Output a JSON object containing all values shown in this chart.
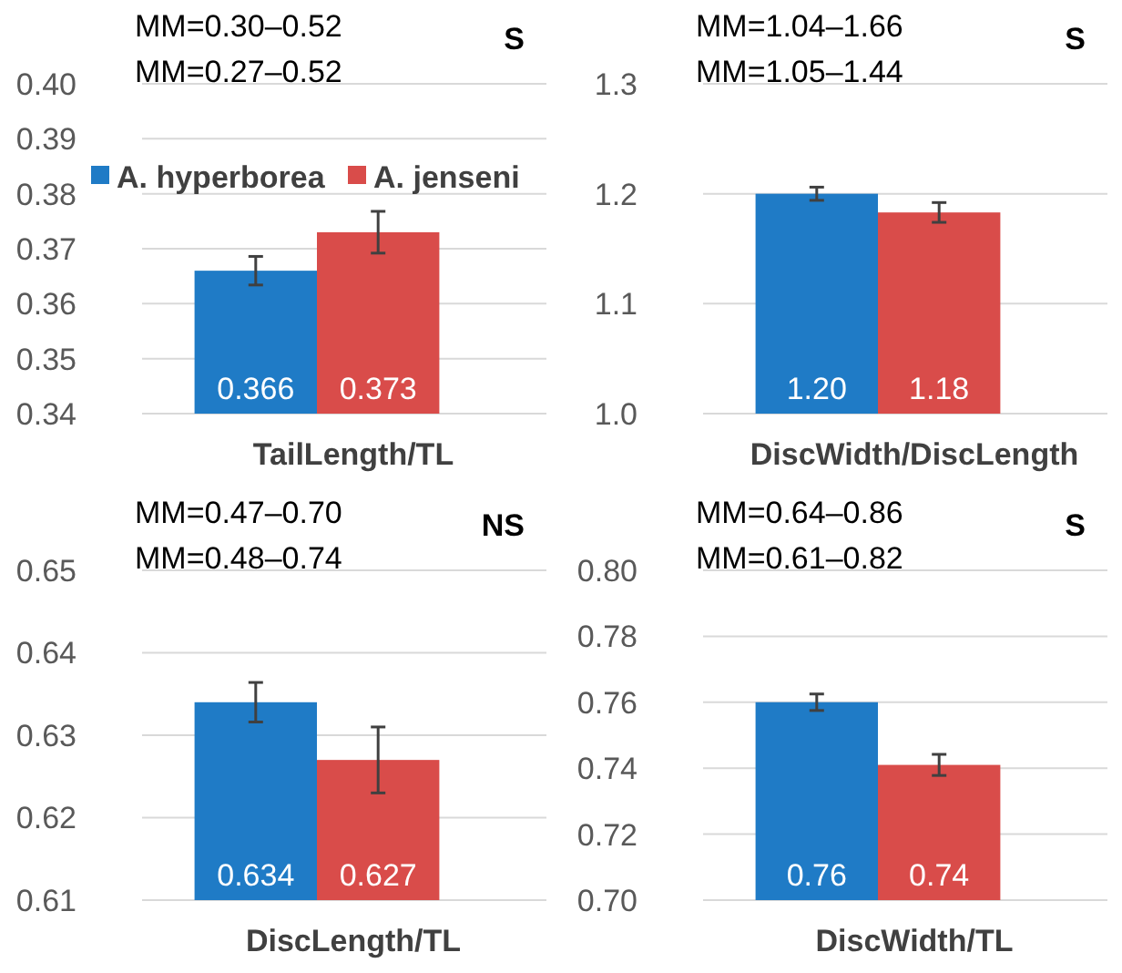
{
  "chart_data": [
    {
      "type": "bar",
      "xlabel": "TailLength/TL",
      "categories": [
        null
      ],
      "ylim": [
        0.34,
        0.4
      ],
      "yticks": [
        {
          "value": 0.34,
          "label": "0.34"
        },
        {
          "value": 0.35,
          "label": "0.35"
        },
        {
          "value": 0.36,
          "label": "0.36"
        },
        {
          "value": 0.37,
          "label": "0.37"
        },
        {
          "value": 0.38,
          "label": "0.38"
        },
        {
          "value": 0.39,
          "label": "0.39"
        },
        {
          "value": 0.4,
          "label": "0.40"
        }
      ],
      "grid": "y",
      "tick_labels": "y",
      "legend": "top left",
      "annotations": [
        "MM=0.30–0.52",
        "MM=0.27–0.52",
        "S"
      ],
      "series": [
        {
          "name": "A. hyperborea",
          "color": "#1f7bc6",
          "values": [
            0.366
          ],
          "errors": [
            0.0026
          ],
          "value_labels": [
            "0.366"
          ]
        },
        {
          "name": "A. jenseni",
          "color": "#d94c4a",
          "values": [
            0.373
          ],
          "errors": [
            0.0038
          ],
          "value_labels": [
            "0.373"
          ]
        }
      ]
    },
    {
      "type": "bar",
      "xlabel": "DiscWidth/DiscLength",
      "categories": [
        null
      ],
      "ylim": [
        1.0,
        1.3
      ],
      "yticks": [
        {
          "value": 1.0,
          "label": "1.0"
        },
        {
          "value": 1.1,
          "label": "1.1"
        },
        {
          "value": 1.2,
          "label": "1.2"
        },
        {
          "value": 1.3,
          "label": "1.3"
        }
      ],
      "grid": "y",
      "tick_labels": "y",
      "annotations": [
        "MM=1.04–1.66",
        "MM=1.05–1.44",
        "S"
      ],
      "series": [
        {
          "color": "#1f7bc6",
          "values": [
            1.2
          ],
          "errors": [
            0.006
          ],
          "value_labels": [
            "1.20"
          ]
        },
        {
          "color": "#d94c4a",
          "values": [
            1.183
          ],
          "errors": [
            0.009
          ],
          "value_labels": [
            "1.18"
          ]
        }
      ]
    },
    {
      "type": "bar",
      "xlabel": "DiscLength/TL",
      "categories": [
        null
      ],
      "ylim": [
        0.61,
        0.65
      ],
      "yticks": [
        {
          "value": 0.61,
          "label": "0.61"
        },
        {
          "value": 0.62,
          "label": "0.62"
        },
        {
          "value": 0.63,
          "label": "0.63"
        },
        {
          "value": 0.64,
          "label": "0.64"
        },
        {
          "value": 0.65,
          "label": "0.65"
        }
      ],
      "grid": "y",
      "tick_labels": "y",
      "annotations": [
        "MM=0.47–0.70",
        "MM=0.48–0.74",
        "NS"
      ],
      "series": [
        {
          "color": "#1f7bc6",
          "values": [
            0.634
          ],
          "errors": [
            0.0024
          ],
          "value_labels": [
            "0.634"
          ]
        },
        {
          "color": "#d94c4a",
          "values": [
            0.627
          ],
          "errors": [
            0.004
          ],
          "value_labels": [
            "0.627"
          ]
        }
      ]
    },
    {
      "type": "bar",
      "xlabel": "DiscWidth/TL",
      "categories": [
        null
      ],
      "ylim": [
        0.7,
        0.8
      ],
      "yticks": [
        {
          "value": 0.7,
          "label": "0.70"
        },
        {
          "value": 0.72,
          "label": "0.72"
        },
        {
          "value": 0.74,
          "label": "0.74"
        },
        {
          "value": 0.76,
          "label": "0.76"
        },
        {
          "value": 0.78,
          "label": "0.78"
        },
        {
          "value": 0.8,
          "label": "0.80"
        }
      ],
      "grid": "y",
      "tick_labels": "y",
      "annotations": [
        "MM=0.64–0.86",
        "MM=0.61–0.82",
        "S"
      ],
      "series": [
        {
          "color": "#1f7bc6",
          "values": [
            0.76
          ],
          "errors": [
            0.0025
          ],
          "value_labels": [
            "0.76"
          ]
        },
        {
          "color": "#d94c4a",
          "values": [
            0.741
          ],
          "errors": [
            0.0032
          ],
          "value_labels": [
            "0.74"
          ]
        }
      ]
    }
  ]
}
